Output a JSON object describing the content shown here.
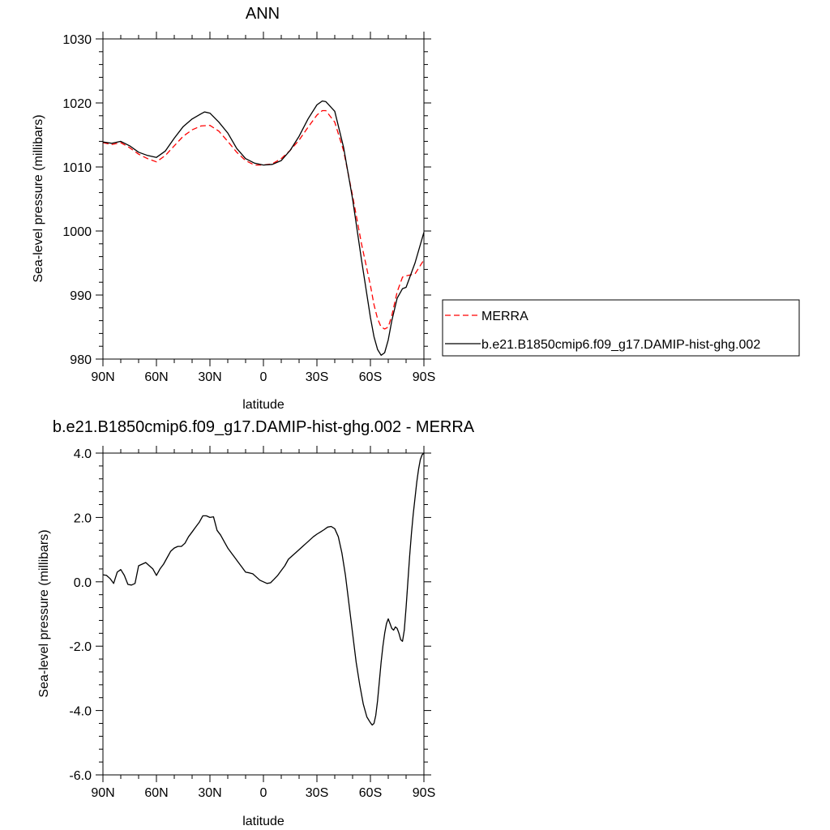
{
  "chart_data": [
    {
      "type": "line",
      "title": "ANN",
      "xlabel": "latitude",
      "ylabel": "Sea-level pressure (millibars)",
      "xlim": [
        90,
        -90
      ],
      "ylim": [
        980,
        1030
      ],
      "x_tick_values": [
        90,
        60,
        30,
        0,
        -30,
        -60,
        -90
      ],
      "x_tick_labels": [
        "90N",
        "60N",
        "30N",
        "0",
        "30S",
        "60S",
        "90S"
      ],
      "y_tick_values": [
        980,
        990,
        1000,
        1010,
        1020,
        1030
      ],
      "y_tick_labels": [
        "980",
        "990",
        "1000",
        "1010",
        "1020",
        "1030"
      ],
      "legend_position": "right",
      "series": [
        {
          "name": "MERRA",
          "color": "#ff0000",
          "dash": "dashed",
          "x": [
            90,
            85,
            80,
            75,
            70,
            65,
            60,
            55,
            50,
            45,
            40,
            35,
            30,
            25,
            20,
            15,
            10,
            5,
            0,
            -5,
            -10,
            -15,
            -20,
            -25,
            -30,
            -33,
            -35,
            -40,
            -45,
            -50,
            -55,
            -60,
            -62,
            -64,
            -66,
            -68,
            -70,
            -72,
            -75,
            -78,
            -80,
            -85,
            -90
          ],
          "values": [
            1013.8,
            1013.5,
            1013.8,
            1013.0,
            1012.0,
            1011.3,
            1010.8,
            1011.8,
            1013.3,
            1014.8,
            1015.8,
            1016.4,
            1016.5,
            1015.6,
            1014.0,
            1012.3,
            1011.0,
            1010.3,
            1010.3,
            1010.5,
            1011.3,
            1012.6,
            1014.2,
            1016.2,
            1018.1,
            1018.8,
            1018.8,
            1017.0,
            1012.5,
            1005.5,
            998.0,
            991.5,
            988.5,
            986.3,
            985.0,
            984.7,
            985.0,
            986.8,
            990.5,
            992.8,
            993.0,
            993.3,
            995.5
          ]
        },
        {
          "name": "b.e21.B1850cmip6.f09_g17.DAMIP-hist-ghg.002",
          "color": "#000000",
          "dash": "solid",
          "x": [
            90,
            85,
            80,
            75,
            70,
            65,
            60,
            55,
            50,
            45,
            40,
            35,
            33,
            30,
            25,
            20,
            15,
            10,
            5,
            0,
            -5,
            -10,
            -15,
            -20,
            -25,
            -30,
            -33,
            -35,
            -40,
            -45,
            -50,
            -55,
            -60,
            -62,
            -64,
            -66,
            -68,
            -70,
            -72,
            -75,
            -78,
            -80,
            -85,
            -90
          ],
          "values": [
            1013.9,
            1013.7,
            1014.0,
            1013.3,
            1012.3,
            1011.8,
            1011.5,
            1012.5,
            1014.5,
            1016.3,
            1017.5,
            1018.3,
            1018.6,
            1018.4,
            1017.0,
            1015.3,
            1012.9,
            1011.3,
            1010.6,
            1010.3,
            1010.4,
            1011.0,
            1012.6,
            1014.8,
            1017.5,
            1019.7,
            1020.3,
            1020.2,
            1018.7,
            1013.0,
            1005.0,
            995.5,
            986.5,
            983.5,
            981.5,
            980.6,
            981.0,
            983.0,
            986.0,
            989.5,
            991.0,
            991.2,
            995.0,
            999.8
          ]
        }
      ]
    },
    {
      "type": "line",
      "title": "b.e21.B1850cmip6.f09_g17.DAMIP-hist-ghg.002 - MERRA",
      "xlabel": "latitude",
      "ylabel": "Sea-level pressure (millibars)",
      "xlim": [
        90,
        -90
      ],
      "ylim": [
        -6.0,
        4.0
      ],
      "x_tick_values": [
        90,
        60,
        30,
        0,
        -30,
        -60,
        -90
      ],
      "x_tick_labels": [
        "90N",
        "60N",
        "30N",
        "0",
        "30S",
        "60S",
        "90S"
      ],
      "y_tick_values": [
        -6,
        -4,
        -2,
        0,
        2,
        4
      ],
      "y_tick_labels": [
        "-6.0",
        "-4.0",
        "-2.0",
        "0.0",
        "2.0",
        "4.0"
      ],
      "series": [
        {
          "color": "#000000",
          "dash": "solid",
          "x": [
            90,
            88,
            86,
            84,
            82,
            80,
            78,
            76,
            74,
            72,
            70,
            68,
            66,
            64,
            62,
            60,
            58,
            56,
            54,
            52,
            50,
            48,
            46,
            44,
            42,
            40,
            38,
            36,
            34,
            32,
            30,
            28,
            26,
            24,
            22,
            20,
            18,
            16,
            14,
            12,
            10,
            8,
            6,
            4,
            2,
            0,
            -2,
            -4,
            -6,
            -8,
            -10,
            -12,
            -14,
            -16,
            -18,
            -20,
            -22,
            -24,
            -26,
            -28,
            -30,
            -32,
            -34,
            -36,
            -38,
            -40,
            -42,
            -44,
            -46,
            -48,
            -50,
            -52,
            -54,
            -56,
            -58,
            -60,
            -61,
            -62,
            -63,
            -64,
            -65,
            -66,
            -67,
            -68,
            -69,
            -70,
            -71,
            -72,
            -73,
            -74,
            -75,
            -76,
            -77,
            -78,
            -79,
            -80,
            -81,
            -82,
            -83,
            -84,
            -85,
            -86,
            -87,
            -88,
            -89,
            -90
          ],
          "values": [
            0.22,
            0.2,
            0.1,
            -0.05,
            0.3,
            0.38,
            0.2,
            -0.08,
            -0.1,
            -0.05,
            0.5,
            0.55,
            0.6,
            0.5,
            0.4,
            0.2,
            0.4,
            0.55,
            0.75,
            0.95,
            1.05,
            1.1,
            1.1,
            1.2,
            1.4,
            1.55,
            1.7,
            1.85,
            2.05,
            2.05,
            2.0,
            2.02,
            1.6,
            1.45,
            1.25,
            1.05,
            0.9,
            0.75,
            0.6,
            0.45,
            0.3,
            0.28,
            0.25,
            0.15,
            0.05,
            0.0,
            -0.05,
            -0.03,
            0.08,
            0.2,
            0.35,
            0.5,
            0.7,
            0.8,
            0.9,
            1.0,
            1.1,
            1.2,
            1.3,
            1.4,
            1.48,
            1.55,
            1.62,
            1.7,
            1.72,
            1.65,
            1.4,
            0.9,
            0.2,
            -0.7,
            -1.6,
            -2.5,
            -3.2,
            -3.8,
            -4.2,
            -4.38,
            -4.45,
            -4.4,
            -4.15,
            -3.7,
            -3.1,
            -2.5,
            -2.0,
            -1.6,
            -1.3,
            -1.15,
            -1.3,
            -1.45,
            -1.5,
            -1.4,
            -1.45,
            -1.6,
            -1.8,
            -1.85,
            -1.5,
            -0.8,
            0.0,
            0.8,
            1.5,
            2.1,
            2.6,
            3.1,
            3.5,
            3.8,
            3.95,
            4.0
          ]
        }
      ]
    }
  ]
}
